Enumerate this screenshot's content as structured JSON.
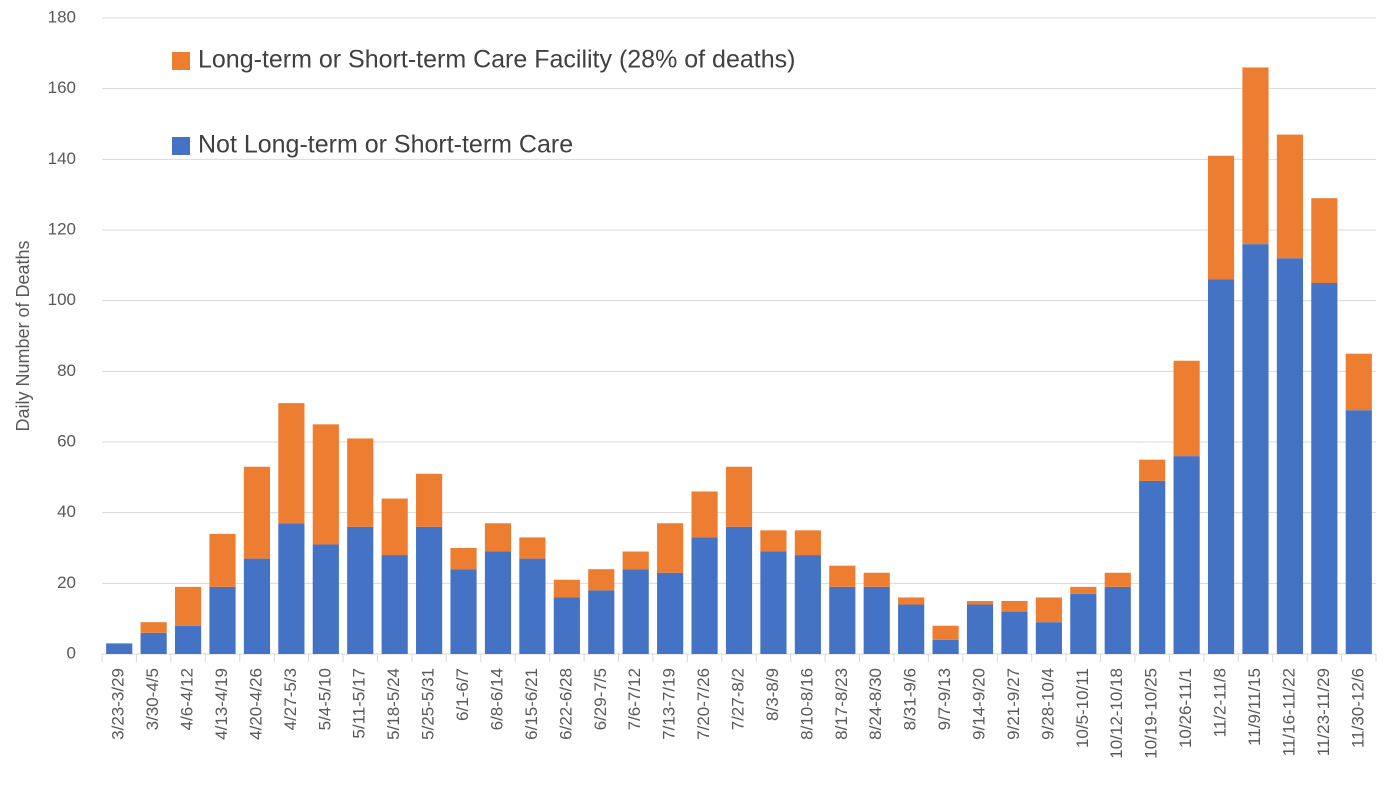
{
  "chart_data": {
    "type": "stacked_bar",
    "y_label": "Daily Number of Deaths",
    "categories": [
      "3/23-3/29",
      "3/30-4/5",
      "4/6-4/12",
      "4/13-4/19",
      "4/20-4/26",
      "4/27-5/3",
      "5/4-5/10",
      "5/11-5/17",
      "5/18-5/24",
      "5/25-5/31",
      "6/1-6/7",
      "6/8-6/14",
      "6/15-6/21",
      "6/22-6/28",
      "6/29-7/5",
      "7/6-7/12",
      "7/13-7/19",
      "7/20-7/26",
      "7/27-8/2",
      "8/3-8/9",
      "8/10-8/16",
      "8/17-8/23",
      "8/24-8/30",
      "8/31-9/6",
      "9/7-9/13",
      "9/14-9/20",
      "9/21-9/27",
      "9/28-10/4",
      "10/5-10/11",
      "10/12-10/18",
      "10/19-10/25",
      "10/26-11/1",
      "11/2-11/8",
      "11/9/11/15",
      "11/16-11/22",
      "11/23-11/29",
      "11/30-12/6"
    ],
    "series": [
      {
        "name": "Not Long-term or Short-term Care",
        "color": "#4472c4",
        "values": [
          3,
          6,
          8,
          19,
          27,
          37,
          31,
          36,
          28,
          36,
          24,
          29,
          27,
          16,
          18,
          24,
          23,
          33,
          36,
          29,
          28,
          19,
          19,
          14,
          4,
          14,
          12,
          9,
          17,
          19,
          49,
          56,
          106,
          116,
          112,
          105,
          69
        ]
      },
      {
        "name": "Long-term or Short-term Care Facility (28% of deaths)",
        "color": "#ed7d31",
        "values": [
          0,
          3,
          11,
          15,
          26,
          34,
          34,
          25,
          16,
          15,
          6,
          8,
          6,
          5,
          6,
          5,
          14,
          13,
          17,
          6,
          7,
          6,
          4,
          2,
          4,
          1,
          3,
          7,
          2,
          4,
          6,
          27,
          35,
          50,
          35,
          24,
          16
        ]
      }
    ],
    "ylim": [
      0,
      180
    ],
    "yticks": [
      0,
      20,
      40,
      60,
      80,
      100,
      120,
      140,
      160,
      180
    ],
    "grid": true
  }
}
